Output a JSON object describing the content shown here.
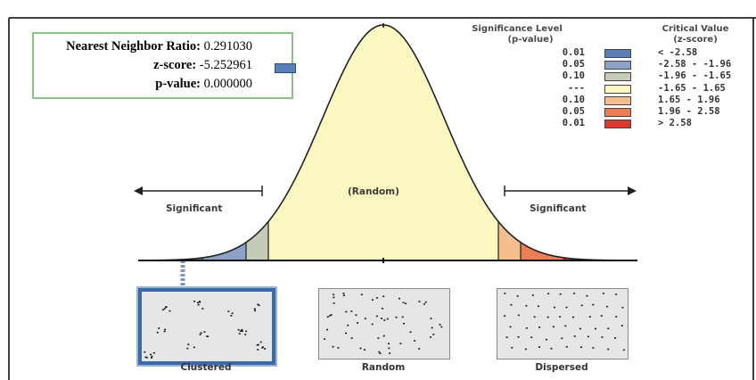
{
  "stats": {
    "nnr_label": "Nearest Neighbor Ratio:",
    "nnr_value": "0.291030",
    "z_label": "z-score:",
    "z_value": "-5.252961",
    "p_label": "p-value:",
    "p_value": "0.000000",
    "z_swatch_color": "#5a7fb4"
  },
  "legend": {
    "sig_header_1": "Significance Level",
    "sig_header_2": "(p-value)",
    "crit_header_1": "Critical Value",
    "crit_header_2": "(z-score)",
    "rows": [
      {
        "p": "0.01",
        "z": "< -2.58",
        "color": "#5a7fb4"
      },
      {
        "p": "0.05",
        "z": "-2.58 - -1.96",
        "color": "#8ba2c4"
      },
      {
        "p": "0.10",
        "z": "-1.96 - -1.65",
        "color": "#c4cbb9"
      },
      {
        "p": "---",
        "z": "-1.65 - 1.65",
        "color": "#fbf7c0"
      },
      {
        "p": "0.10",
        "z": "1.65 - 1.96",
        "color": "#f5be8e"
      },
      {
        "p": "0.05",
        "z": "1.96 - 2.58",
        "color": "#ec7d55"
      },
      {
        "p": "0.01",
        "z": "> 2.58",
        "color": "#d83b2e"
      }
    ]
  },
  "curve": {
    "left_label": "Significant",
    "center_label": "(Random)",
    "right_label": "Significant"
  },
  "patterns": {
    "clustered": "Clustered",
    "random": "Random",
    "dispersed": "Dispersed"
  }
}
